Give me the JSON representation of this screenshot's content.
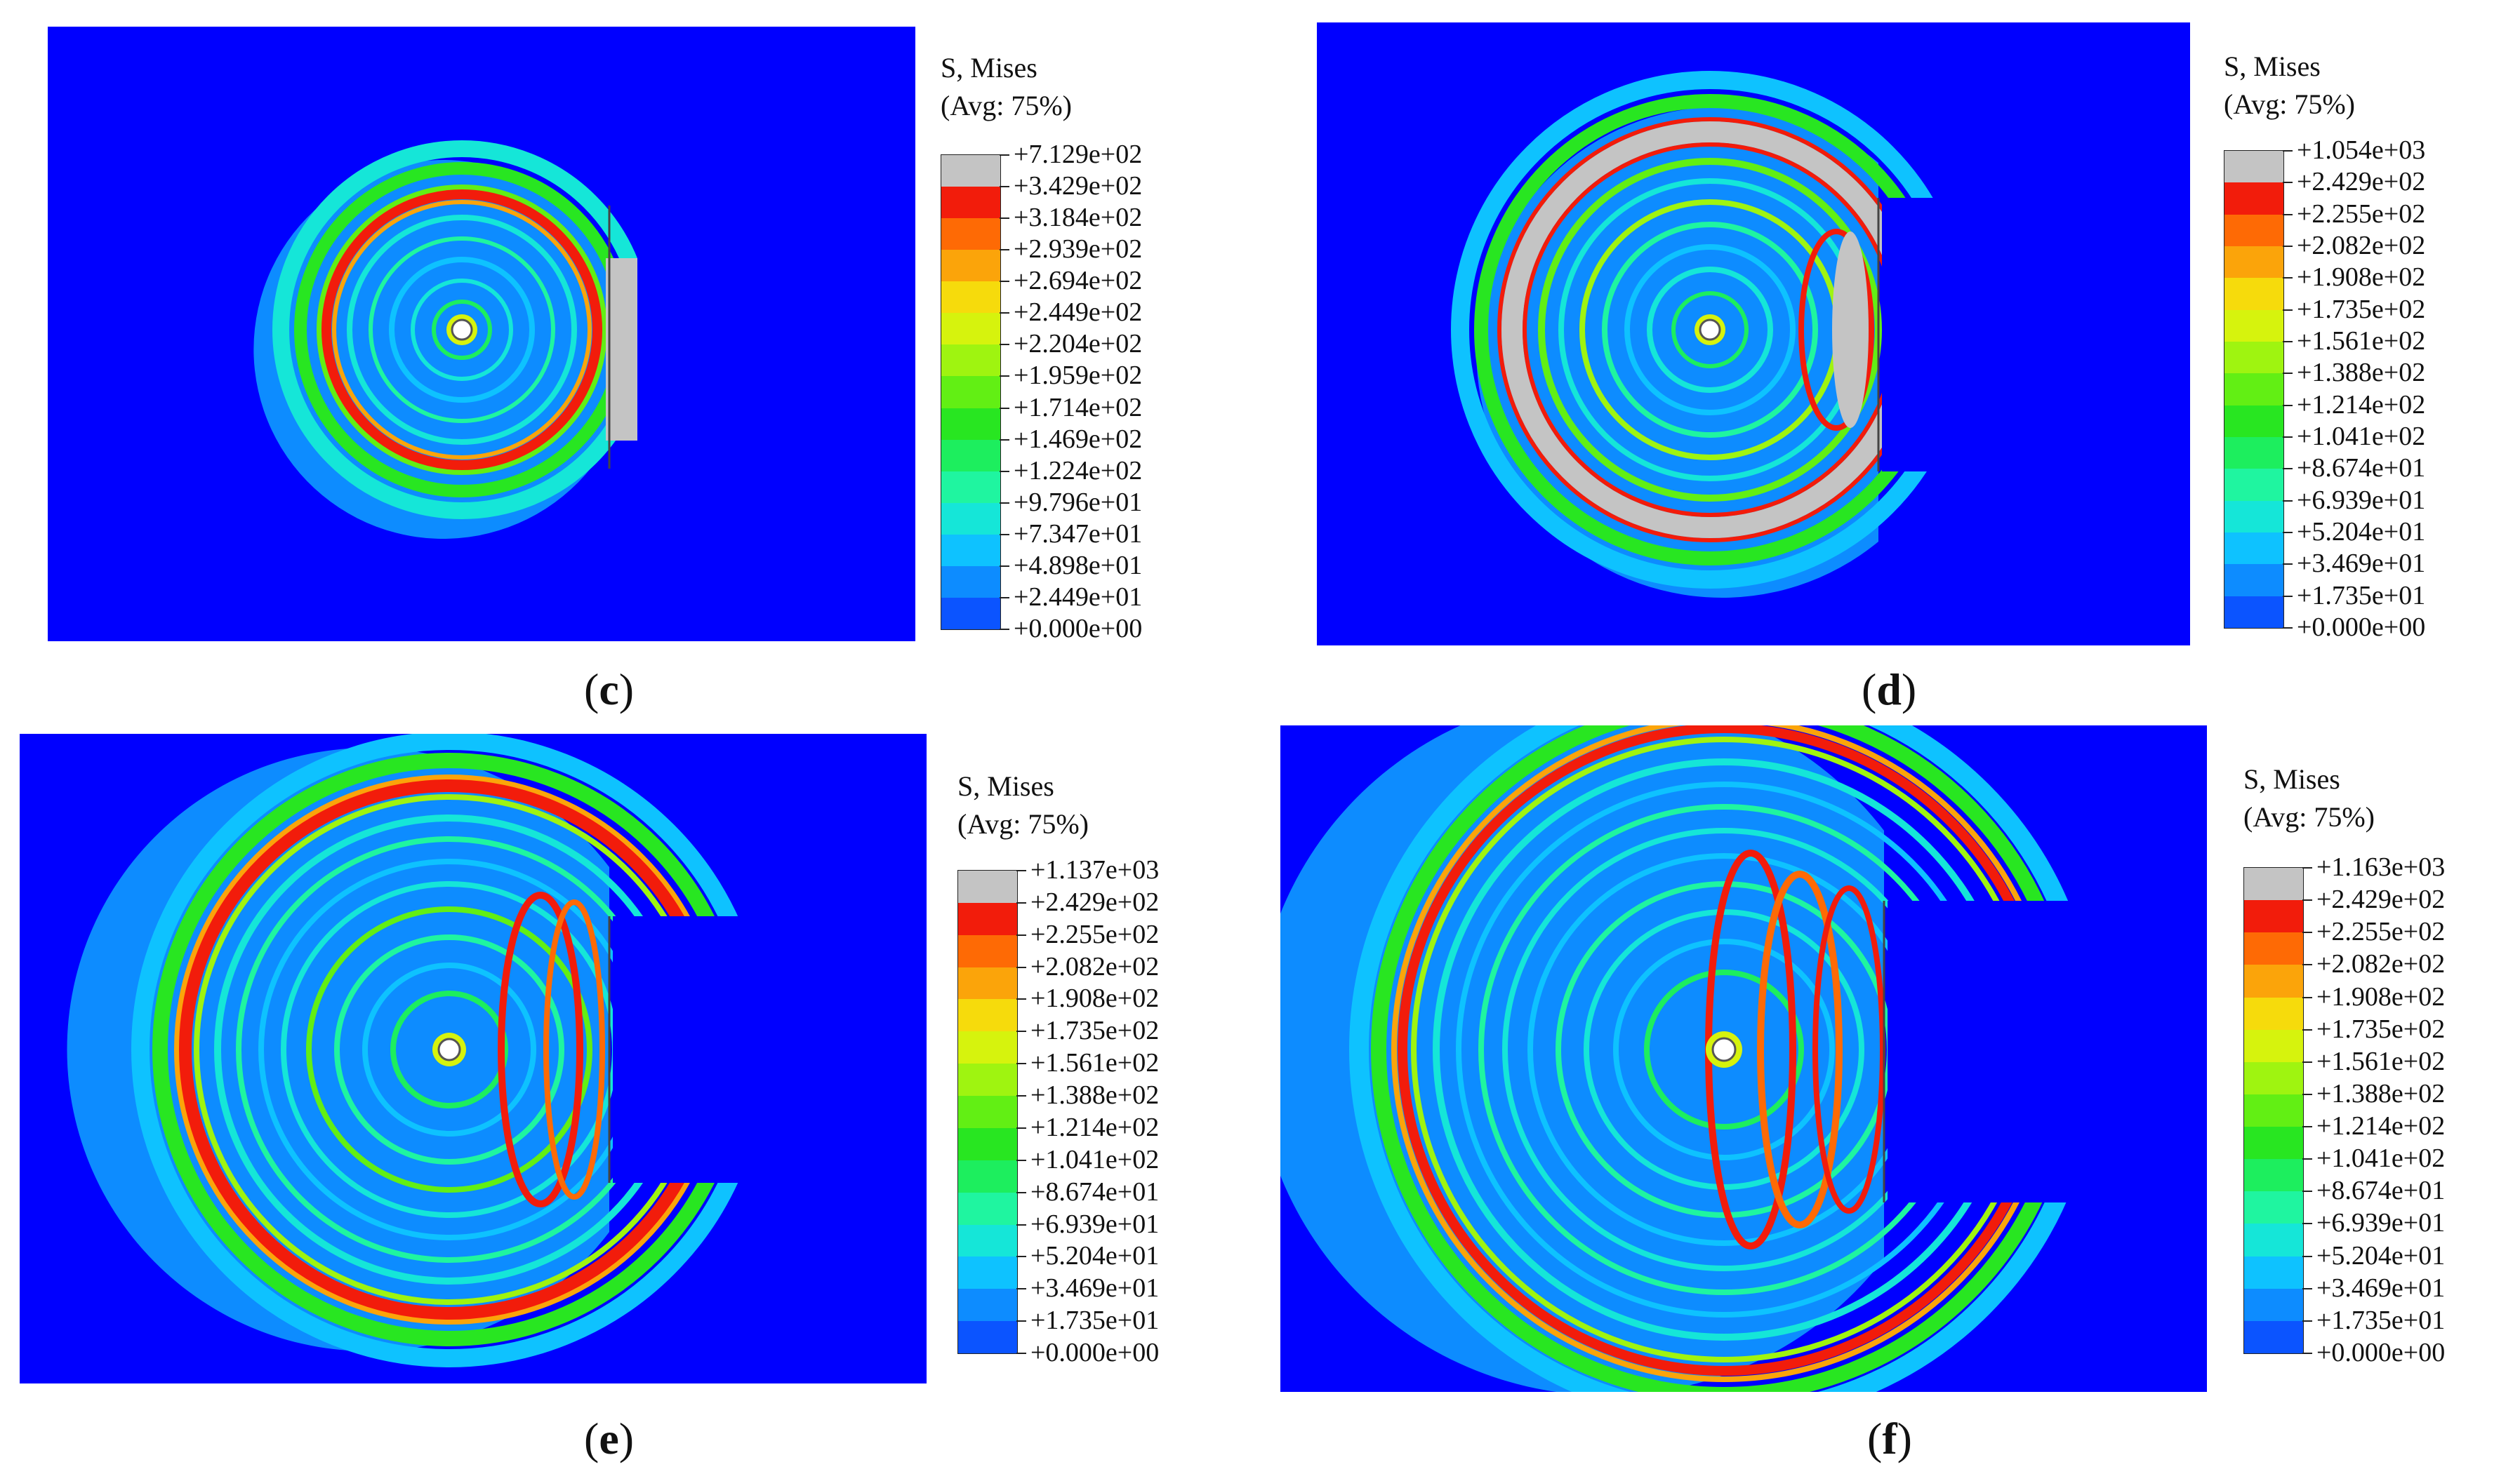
{
  "palette": [
    "#0000ff",
    "#0b54ff",
    "#0d8cff",
    "#0ec2ff",
    "#15e6d8",
    "#1ff5a0",
    "#1dee5e",
    "#28e621",
    "#62ef14",
    "#9ff410",
    "#d6f30d",
    "#f6db0c",
    "#fba40a",
    "#fe6a05",
    "#f21c0b",
    "#c4c4c4"
  ],
  "panels": [
    {
      "caption_open": "(",
      "caption_letter": "c",
      "caption_close": ")",
      "legend_title_1": "S, Mises",
      "legend_title_2": "(Avg: 75%)",
      "legend_labels": [
        "+7.129e+02",
        "+3.429e+02",
        "+3.184e+02",
        "+2.939e+02",
        "+2.694e+02",
        "+2.449e+02",
        "+2.204e+02",
        "+1.959e+02",
        "+1.714e+02",
        "+1.469e+02",
        "+1.224e+02",
        "+9.796e+01",
        "+7.347e+01",
        "+4.898e+01",
        "+2.449e+01",
        "+0.000e+00"
      ]
    },
    {
      "caption_open": "(",
      "caption_letter": "d",
      "caption_close": ")",
      "legend_title_1": "S, Mises",
      "legend_title_2": "(Avg: 75%)",
      "legend_labels": [
        "+1.054e+03",
        "+2.429e+02",
        "+2.255e+02",
        "+2.082e+02",
        "+1.908e+02",
        "+1.735e+02",
        "+1.561e+02",
        "+1.388e+02",
        "+1.214e+02",
        "+1.041e+02",
        "+8.674e+01",
        "+6.939e+01",
        "+5.204e+01",
        "+3.469e+01",
        "+1.735e+01",
        "+0.000e+00"
      ]
    },
    {
      "caption_open": "(",
      "caption_letter": "e",
      "caption_close": ")",
      "legend_title_1": "S, Mises",
      "legend_title_2": "(Avg: 75%)",
      "legend_labels": [
        "+1.137e+03",
        "+2.429e+02",
        "+2.255e+02",
        "+2.082e+02",
        "+1.908e+02",
        "+1.735e+02",
        "+1.561e+02",
        "+1.388e+02",
        "+1.214e+02",
        "+1.041e+02",
        "+8.674e+01",
        "+6.939e+01",
        "+5.204e+01",
        "+3.469e+01",
        "+1.735e+01",
        "+0.000e+00"
      ]
    },
    {
      "caption_open": "(",
      "caption_letter": "f",
      "caption_close": ")",
      "legend_title_1": "S, Mises",
      "legend_title_2": "(Avg: 75%)",
      "legend_labels": [
        "+1.163e+03",
        "+2.429e+02",
        "+2.255e+02",
        "+2.082e+02",
        "+1.908e+02",
        "+1.735e+02",
        "+1.561e+02",
        "+1.388e+02",
        "+1.214e+02",
        "+1.041e+02",
        "+8.674e+01",
        "+6.939e+01",
        "+5.204e+01",
        "+3.469e+01",
        "+1.735e+01",
        "+0.000e+00"
      ]
    }
  ]
}
